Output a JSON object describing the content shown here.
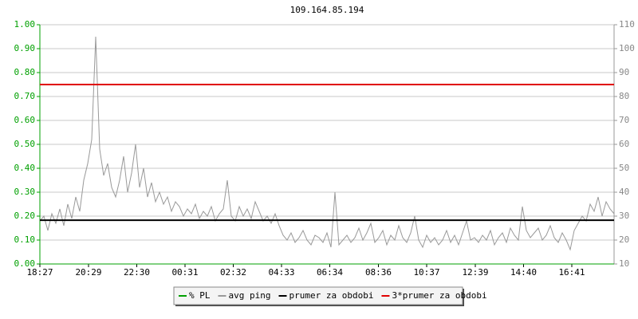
{
  "chart_data": {
    "type": "line",
    "title": "109.164.85.194",
    "xlim": [
      0,
      1440
    ],
    "xticks": [
      {
        "value": 0,
        "label": "18:27"
      },
      {
        "value": 122,
        "label": "20:29"
      },
      {
        "value": 243,
        "label": "22:30"
      },
      {
        "value": 364,
        "label": "00:31"
      },
      {
        "value": 485,
        "label": "02:32"
      },
      {
        "value": 606,
        "label": "04:33"
      },
      {
        "value": 727,
        "label": "06:34"
      },
      {
        "value": 849,
        "label": "08:36"
      },
      {
        "value": 970,
        "label": "10:37"
      },
      {
        "value": 1092,
        "label": "12:39"
      },
      {
        "value": 1213,
        "label": "14:40"
      },
      {
        "value": 1334,
        "label": "16:41"
      }
    ],
    "ylim": [
      0,
      1
    ],
    "yticks": [
      {
        "value": 0,
        "label": "0.00"
      },
      {
        "value": 0.1,
        "label": "0.10"
      },
      {
        "value": 0.2,
        "label": "0.20"
      },
      {
        "value": 0.3,
        "label": "0.30"
      },
      {
        "value": 0.4,
        "label": "0.40"
      },
      {
        "value": 0.5,
        "label": "0.50"
      },
      {
        "value": 0.6,
        "label": "0.60"
      },
      {
        "value": 0.7,
        "label": "0.70"
      },
      {
        "value": 0.8,
        "label": "0.80"
      },
      {
        "value": 0.9,
        "label": "0.90"
      },
      {
        "value": 1,
        "label": "1.00"
      }
    ],
    "y2lim": [
      10,
      110
    ],
    "y2ticks": [
      10,
      20,
      30,
      40,
      50,
      60,
      70,
      80,
      90,
      100,
      110
    ],
    "grid": true,
    "legend": "bottom",
    "series": [
      {
        "name": "% PL",
        "color": "#00a000",
        "axis": "y",
        "x": [
          0,
          1440
        ],
        "values": [
          0,
          0
        ]
      },
      {
        "name": "avg ping",
        "color": "#999999",
        "axis": "y2",
        "x": [
          0,
          10,
          20,
          30,
          40,
          50,
          60,
          70,
          80,
          90,
          100,
          110,
          120,
          130,
          140,
          150,
          160,
          170,
          180,
          190,
          200,
          210,
          220,
          230,
          240,
          250,
          260,
          270,
          280,
          290,
          300,
          310,
          320,
          330,
          340,
          350,
          360,
          370,
          380,
          390,
          400,
          410,
          420,
          430,
          440,
          450,
          460,
          470,
          480,
          490,
          500,
          510,
          520,
          530,
          540,
          550,
          560,
          570,
          580,
          590,
          600,
          610,
          620,
          630,
          640,
          650,
          660,
          670,
          680,
          690,
          700,
          710,
          720,
          730,
          740,
          750,
          760,
          770,
          780,
          790,
          800,
          810,
          820,
          830,
          840,
          850,
          860,
          870,
          880,
          890,
          900,
          910,
          920,
          930,
          940,
          950,
          960,
          970,
          980,
          990,
          1000,
          1010,
          1020,
          1030,
          1040,
          1050,
          1060,
          1070,
          1080,
          1090,
          1100,
          1110,
          1120,
          1130,
          1140,
          1150,
          1160,
          1170,
          1180,
          1190,
          1200,
          1210,
          1220,
          1230,
          1240,
          1250,
          1260,
          1270,
          1280,
          1290,
          1300,
          1310,
          1320,
          1330,
          1340,
          1350,
          1360,
          1370,
          1380,
          1390,
          1400,
          1410,
          1420,
          1430,
          1440
        ],
        "values": [
          28,
          30,
          24,
          31,
          27,
          33,
          26,
          35,
          29,
          38,
          32,
          45,
          52,
          62,
          105,
          58,
          47,
          52,
          42,
          38,
          45,
          55,
          40,
          48,
          60,
          42,
          50,
          38,
          44,
          36,
          40,
          35,
          38,
          32,
          36,
          34,
          30,
          33,
          31,
          35,
          29,
          32,
          30,
          34,
          28,
          31,
          33,
          45,
          30,
          28,
          34,
          30,
          33,
          29,
          36,
          32,
          28,
          30,
          27,
          31,
          26,
          22,
          20,
          23,
          19,
          21,
          24,
          20,
          18,
          22,
          21,
          19,
          23,
          17,
          40,
          18,
          20,
          22,
          19,
          21,
          25,
          20,
          23,
          27,
          19,
          21,
          24,
          18,
          22,
          20,
          26,
          21,
          19,
          23,
          30,
          20,
          17,
          22,
          19,
          21,
          18,
          20,
          24,
          19,
          22,
          18,
          23,
          28,
          20,
          21,
          19,
          22,
          20,
          24,
          18,
          21,
          23,
          19,
          25,
          22,
          20,
          34,
          24,
          21,
          23,
          25,
          20,
          22,
          26,
          21,
          19,
          23,
          20,
          16,
          24,
          27,
          30,
          28,
          35,
          32,
          38,
          30,
          36,
          33,
          31
        ]
      },
      {
        "name": "prumer za obdobi",
        "color": "#000000",
        "axis": "y2",
        "x": [
          0,
          1440
        ],
        "values": [
          28.3,
          28.3
        ]
      },
      {
        "name": "3*prumer za obdobi",
        "color": "#e00000",
        "axis": "y2",
        "x": [
          0,
          1440
        ],
        "values": [
          85,
          85
        ]
      }
    ]
  }
}
